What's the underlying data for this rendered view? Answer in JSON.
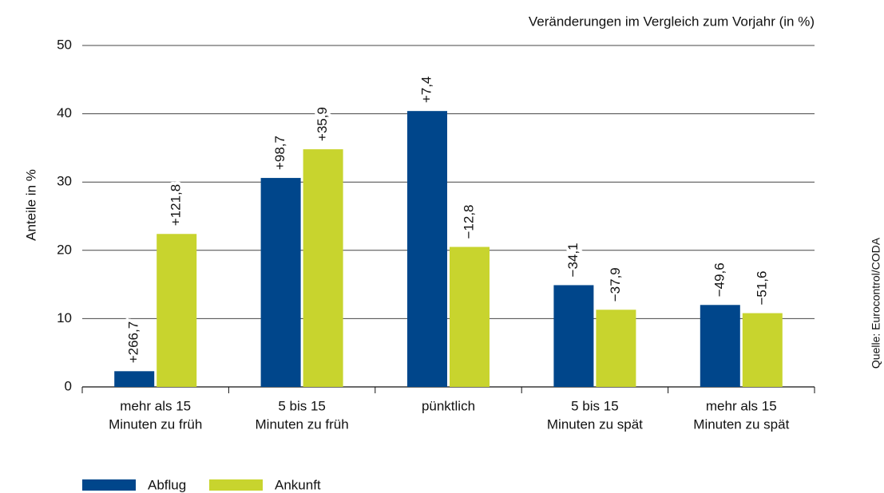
{
  "chart_data": {
    "type": "bar",
    "title": "Veränderungen im Vergleich zum Vorjahr (in %)",
    "y_label": "Anteile in %",
    "source": "Quelle: Eurocontrol/CODA",
    "categories": [
      [
        "mehr als 15",
        "Minuten zu früh"
      ],
      [
        "5 bis 15",
        "Minuten zu früh"
      ],
      [
        "pünktlich"
      ],
      [
        "5 bis 15",
        "Minuten zu spät"
      ],
      [
        "mehr als 15",
        "Minuten zu spät"
      ]
    ],
    "series": [
      {
        "name": "Abflug",
        "color": "#00468b",
        "values": [
          2.3,
          30.6,
          40.4,
          14.9,
          12.0
        ],
        "annotations": [
          "+266,7",
          "+98,7",
          "+7,4",
          "−34,1",
          "−49,6"
        ]
      },
      {
        "name": "Ankunft",
        "color": "#c8d42e",
        "values": [
          22.4,
          34.8,
          20.5,
          11.3,
          10.8
        ],
        "annotations": [
          "+121,8",
          "+35,9",
          "−12,8",
          "−37,9",
          "−51,6"
        ]
      }
    ],
    "ylim": [
      0,
      50
    ],
    "yticks": [
      0,
      10,
      20,
      30,
      40,
      50
    ],
    "grid": true,
    "legend": "bottom"
  }
}
